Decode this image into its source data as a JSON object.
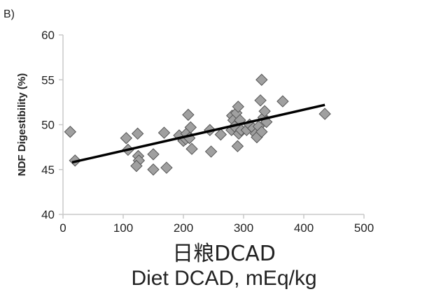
{
  "chart_data": {
    "type": "scatter",
    "panel_label": "B)",
    "ylabel": "NDF Digestibility (%)",
    "xlabel_cn": "日粮DCAD",
    "xlabel": "Diet DCAD, mEq/kg",
    "xlim": [
      0,
      500
    ],
    "ylim": [
      40,
      60
    ],
    "xticks": [
      "0",
      "100",
      "200",
      "300",
      "400",
      "500"
    ],
    "yticks": [
      "40",
      "45",
      "50",
      "55",
      "60"
    ],
    "grid": false,
    "legend": "none",
    "marker": "diamond",
    "marker_color": "#a0a0a0",
    "series": [
      {
        "x": [
          12,
          20,
          105,
          108,
          124,
          125,
          126,
          122,
          150,
          150,
          168,
          172,
          193,
          200,
          204,
          205,
          208,
          210,
          212,
          214,
          244,
          246,
          262,
          280,
          281,
          283,
          285,
          288,
          290,
          291,
          292,
          294,
          296,
          305,
          310,
          316,
          320,
          322,
          325,
          328,
          330,
          330,
          333,
          335,
          338,
          365,
          435
        ],
        "y": [
          49.2,
          46.0,
          48.5,
          47.2,
          49.0,
          46.5,
          46.0,
          45.4,
          46.7,
          45.0,
          49.1,
          45.2,
          48.8,
          48.2,
          48.4,
          49.0,
          51.1,
          48.5,
          49.7,
          47.3,
          49.4,
          47.0,
          48.9,
          49.4,
          51.0,
          50.5,
          49.8,
          51.3,
          47.6,
          52.0,
          49.0,
          50.5,
          49.4,
          49.4,
          50.0,
          49.6,
          49.0,
          48.6,
          49.8,
          52.7,
          55.0,
          49.2,
          50.8,
          51.5,
          50.3,
          52.6,
          51.2
        ]
      }
    ],
    "trendline": {
      "x": [
        15,
        435
      ],
      "y": [
        45.8,
        52.2
      ]
    },
    "colors": {
      "line": "#000000",
      "marker_fill": "#a0a0a0",
      "marker_stroke": "#555555",
      "axis": "#c8c8c8",
      "text": "#222222"
    }
  }
}
